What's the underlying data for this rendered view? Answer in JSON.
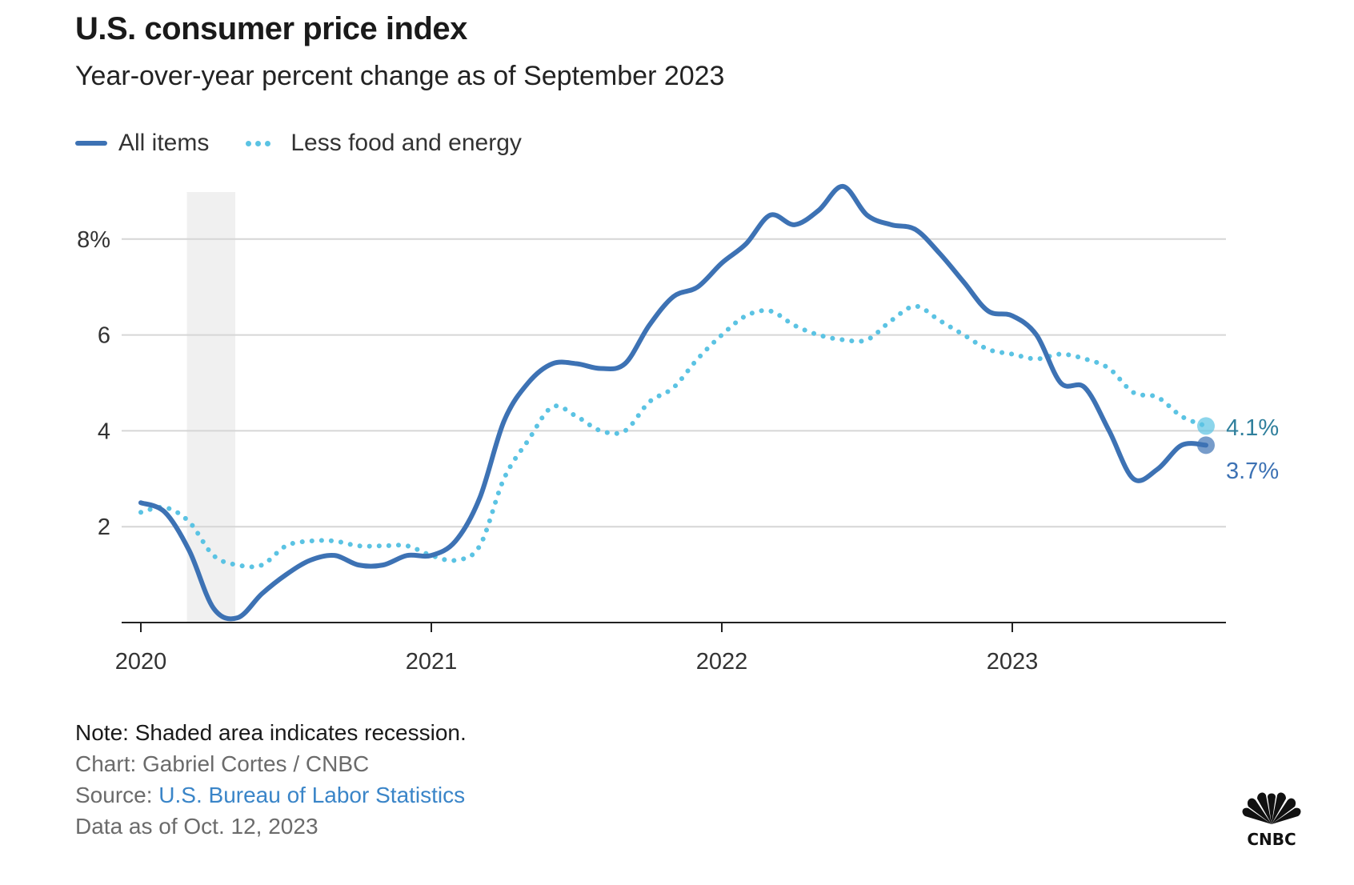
{
  "header": {
    "title": "U.S. consumer price index",
    "subtitle": "Year-over-year percent change as of September 2023"
  },
  "legend": [
    {
      "label": "All items",
      "style": "solid",
      "color": "#3d72b4"
    },
    {
      "label": "Less food and energy",
      "style": "dotted",
      "color": "#5bc3e3"
    }
  ],
  "footer": {
    "note": "Note: Shaded area indicates recession.",
    "credit": "Chart: Gabriel Cortes / CNBC",
    "source_prefix": "Source: ",
    "source_link": "U.S. Bureau of Labor Statistics",
    "data_as_of": "Data as of Oct. 12, 2023"
  },
  "logo": {
    "text": "CNBC",
    "icon": "cnbc-peacock-logo"
  },
  "chart_data": {
    "type": "line",
    "title": "U.S. consumer price index",
    "subtitle": "Year-over-year percent change as of September 2023",
    "xlabel": "",
    "ylabel": "",
    "x_start": "2020-01",
    "x_end": "2023-09",
    "x_ticks": [
      {
        "label": "2020",
        "month_index": 0
      },
      {
        "label": "2021",
        "month_index": 12
      },
      {
        "label": "2022",
        "month_index": 24
      },
      {
        "label": "2023",
        "month_index": 36
      }
    ],
    "y_ticks": [
      {
        "label": "2",
        "value": 2
      },
      {
        "label": "4",
        "value": 4
      },
      {
        "label": "6",
        "value": 6
      },
      {
        "label": "8%",
        "value": 8
      }
    ],
    "ylim": [
      0,
      9
    ],
    "grid": true,
    "legend_position": "top-left",
    "recession": {
      "start_month_index": 1.9,
      "end_month_index": 3.9
    },
    "series": [
      {
        "name": "All items",
        "style": "solid",
        "color": "#3d72b4",
        "values": [
          2.5,
          2.3,
          1.5,
          0.3,
          0.1,
          0.6,
          1.0,
          1.3,
          1.4,
          1.2,
          1.2,
          1.4,
          1.4,
          1.7,
          2.6,
          4.2,
          5.0,
          5.4,
          5.4,
          5.3,
          5.4,
          6.2,
          6.8,
          7.0,
          7.5,
          7.9,
          8.5,
          8.3,
          8.6,
          9.1,
          8.5,
          8.3,
          8.2,
          7.7,
          7.1,
          6.5,
          6.4,
          6.0,
          5.0,
          4.9,
          4.0,
          3.0,
          3.2,
          3.7,
          3.7
        ],
        "end_label": "3.7%",
        "label_color": "#3d72b4"
      },
      {
        "name": "Less food and energy",
        "style": "dotted",
        "color": "#5bc3e3",
        "values": [
          2.3,
          2.4,
          2.1,
          1.4,
          1.2,
          1.2,
          1.6,
          1.7,
          1.7,
          1.6,
          1.6,
          1.6,
          1.4,
          1.3,
          1.6,
          3.0,
          3.8,
          4.5,
          4.3,
          4.0,
          4.0,
          4.6,
          4.9,
          5.5,
          6.0,
          6.4,
          6.5,
          6.2,
          6.0,
          5.9,
          5.9,
          6.3,
          6.6,
          6.3,
          6.0,
          5.7,
          5.6,
          5.5,
          5.6,
          5.5,
          5.3,
          4.8,
          4.7,
          4.3,
          4.1
        ],
        "end_label": "4.1%",
        "label_color": "#2f7f9c"
      }
    ]
  }
}
